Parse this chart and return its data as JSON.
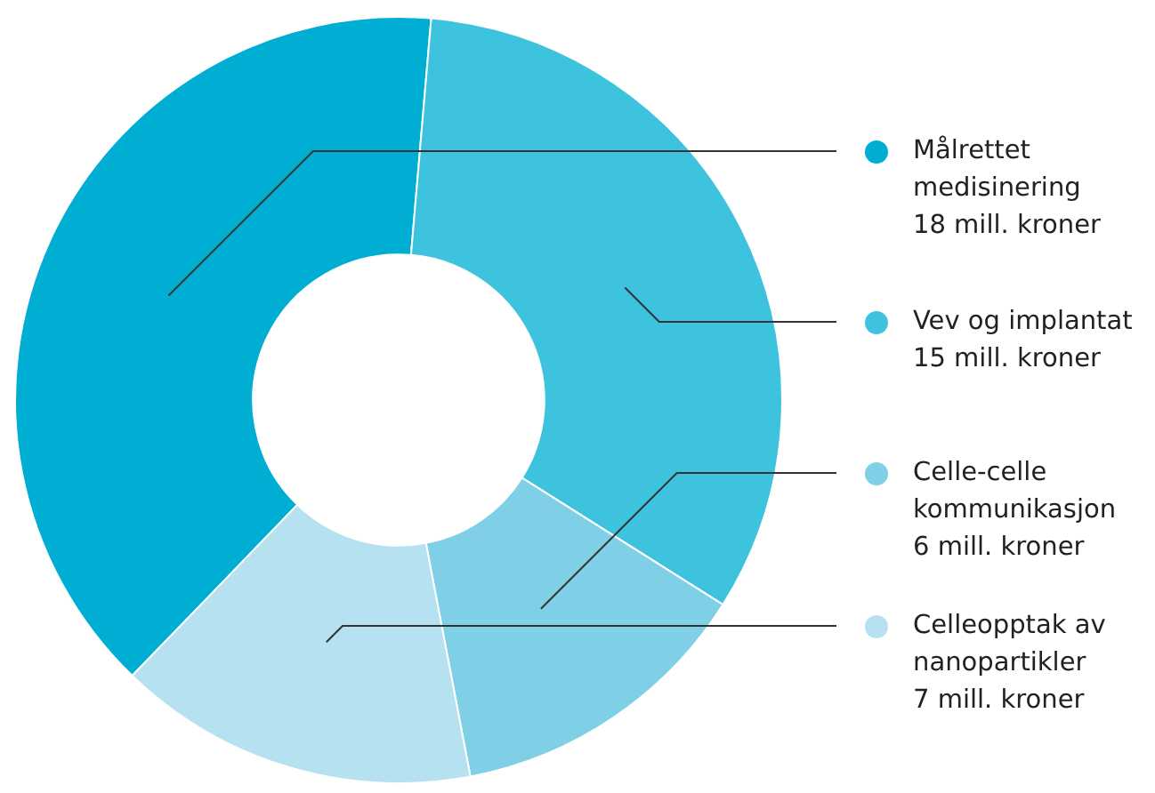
{
  "chart_data": {
    "type": "donut",
    "categories": [
      "Målrettet medisinering",
      "Vev og implantat",
      "Celle-celle kommunikasjon",
      "Celleopptak av nanopartikler"
    ],
    "values": [
      18,
      15,
      6,
      7
    ],
    "colors": [
      "#00aed4",
      "#3ec3df",
      "#7fd0e6",
      "#b5e1f0"
    ],
    "value_labels": [
      "18 mill. kroner",
      "15 mill. kroner",
      "6 mill. kroner",
      "7 mill. kroner"
    ],
    "legend": "right"
  }
}
